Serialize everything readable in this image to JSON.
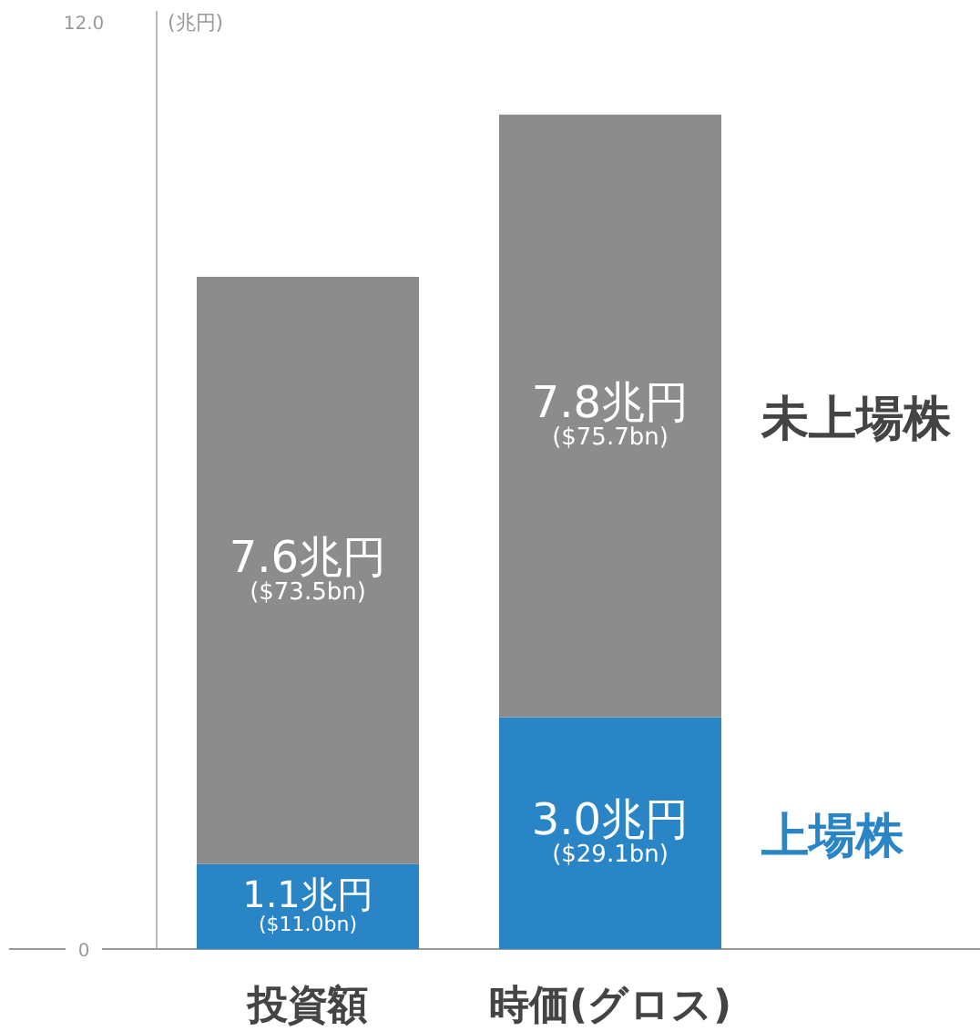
{
  "chart_data": {
    "type": "bar",
    "stacked": true,
    "ylabel": "(兆円)",
    "categories": [
      "投資額",
      "時価(グロス)"
    ],
    "ylim": [
      0,
      12
    ],
    "yticks": [
      0,
      {
        "value": 12,
        "label": "12.0"
      }
    ],
    "legend": false,
    "grid": false,
    "series": [
      {
        "name": "上場株",
        "color": "#2a85c6",
        "values": [
          1.1,
          3.0
        ],
        "value_labels": [
          "1.1兆円\n($11.0bn)",
          "3.0兆円\n($29.1bn)"
        ]
      },
      {
        "name": "未上場株",
        "color": "#8c8c8c",
        "values": [
          7.6,
          7.8
        ],
        "value_labels": [
          "7.6兆円\n($73.5bn)",
          "7.8兆円\n($75.7bn)"
        ]
      }
    ]
  }
}
